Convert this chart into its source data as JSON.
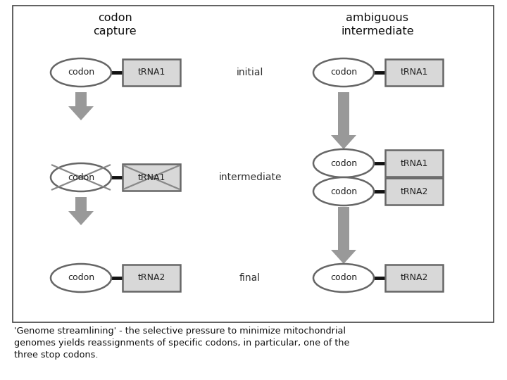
{
  "title_left": "codon\ncapture",
  "title_right": "ambiguous\nintermediate",
  "row_labels": [
    "initial",
    "intermediate",
    "final"
  ],
  "caption": "'Genome streamlining' - the selective pressure to minimize mitochondrial\ngenomes yields reassignments of specific codons, in particular, one of the\nthree stop codons.",
  "bg_color": "#ffffff",
  "border_color": "#333333",
  "shape_edge": "#666666",
  "arrow_color": "#999999",
  "text_color": "#111111",
  "font_mono": "Courier New"
}
